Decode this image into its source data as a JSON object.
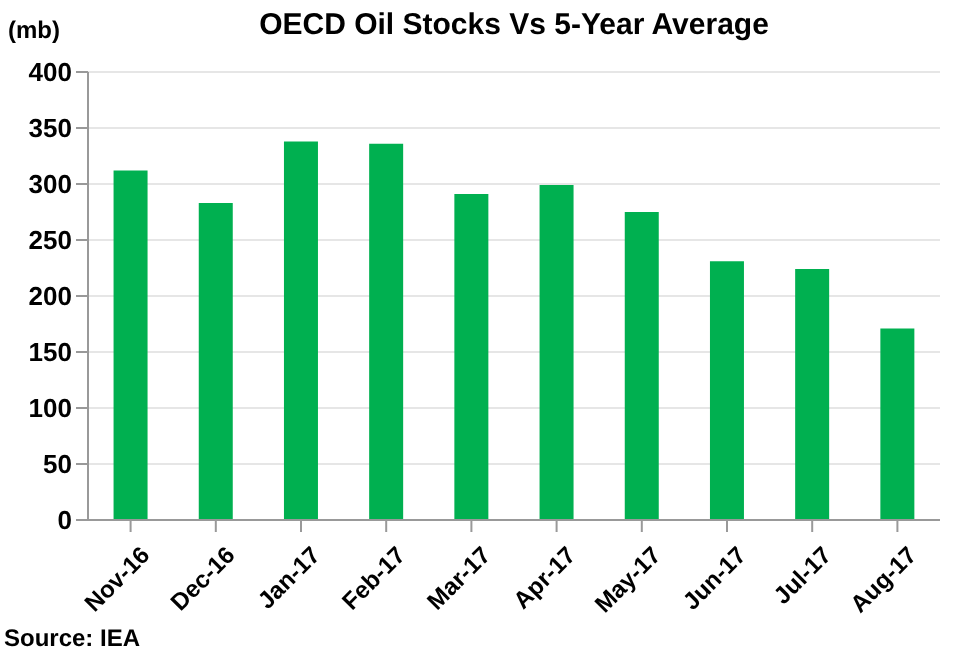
{
  "chart_data": {
    "type": "bar",
    "title": "OECD Oil Stocks Vs 5-Year Average",
    "ylabel": "(mb)",
    "categories": [
      "Nov-16",
      "Dec-16",
      "Jan-17",
      "Feb-17",
      "Mar-17",
      "Apr-17",
      "May-17",
      "Jun-17",
      "Jul-17",
      "Aug-17"
    ],
    "values": [
      312,
      283,
      338,
      336,
      291,
      299,
      275,
      231,
      224,
      171
    ],
    "color": "#00b050",
    "ylim": [
      0,
      400
    ],
    "yticks": [
      0,
      50,
      100,
      150,
      200,
      250,
      300,
      350,
      400
    ],
    "grid": "y",
    "annotations": [
      "Source: IEA"
    ]
  }
}
